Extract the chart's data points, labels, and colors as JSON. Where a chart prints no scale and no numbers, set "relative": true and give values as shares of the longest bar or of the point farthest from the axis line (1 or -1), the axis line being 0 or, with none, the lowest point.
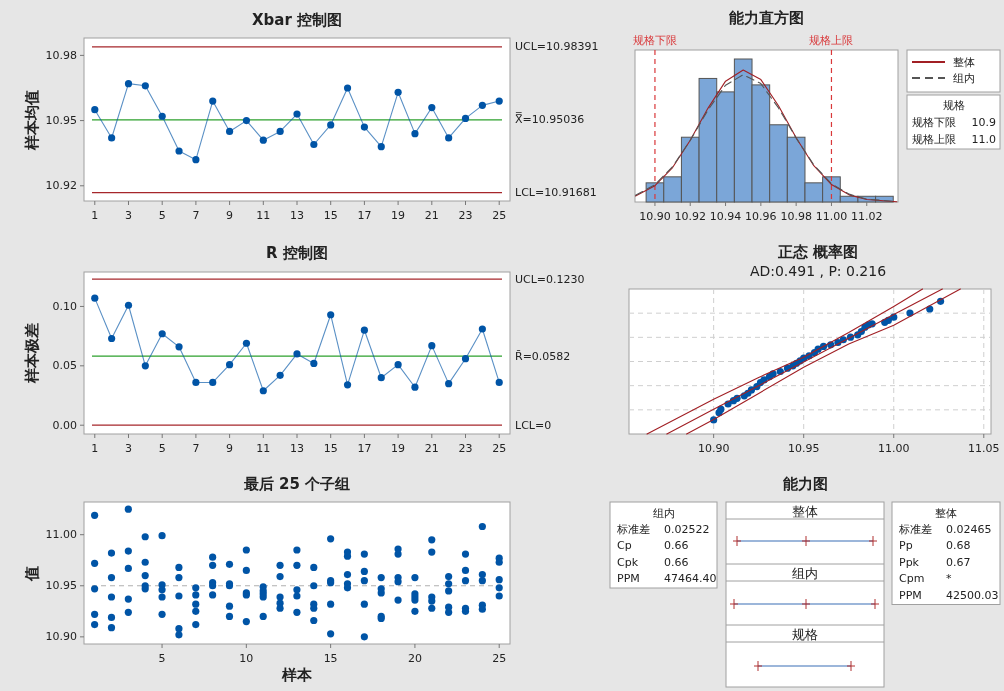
{
  "chart_data": [
    {
      "type": "line",
      "title": "Xbar 控制图",
      "ylabel": "样本均值",
      "x": [
        1,
        2,
        3,
        4,
        5,
        6,
        7,
        8,
        9,
        10,
        11,
        12,
        13,
        14,
        15,
        16,
        17,
        18,
        19,
        20,
        21,
        22,
        23,
        24,
        25
      ],
      "xlim": [
        0.36,
        25.64
      ],
      "xticks": [
        1,
        3,
        5,
        7,
        9,
        11,
        13,
        15,
        17,
        19,
        21,
        23,
        25
      ],
      "ylim": [
        10.913,
        10.988
      ],
      "yticks": [
        10.92,
        10.95,
        10.98
      ],
      "marker": "circle",
      "series": [
        {
          "color": "#0054a6",
          "values": [
            10.955,
            10.942,
            10.967,
            10.966,
            10.952,
            10.936,
            10.932,
            10.959,
            10.945,
            10.95,
            10.941,
            10.945,
            10.953,
            10.939,
            10.948,
            10.965,
            10.947,
            10.938,
            10.963,
            10.944,
            10.956,
            10.942,
            10.951,
            10.957,
            10.959
          ]
        }
      ],
      "ref_lines": [
        {
          "axis": "y",
          "value": 10.98391,
          "label": "UCL=10.98391",
          "color": "#a6262b"
        },
        {
          "axis": "y",
          "value": 10.95036,
          "label": "X̿=10.95036",
          "color": "#2ca02c"
        },
        {
          "axis": "y",
          "value": 10.91681,
          "label": "LCL=10.91681",
          "color": "#a6262b"
        }
      ]
    },
    {
      "type": "histogram",
      "title": "能力直方图",
      "relative": true,
      "bins": [
        10.895,
        10.905,
        10.915,
        10.925,
        10.935,
        10.945,
        10.955,
        10.965,
        10.975,
        10.985,
        10.995,
        11.005,
        11.015,
        11.025,
        11.035
      ],
      "values": [
        0.134,
        0.176,
        0.453,
        0.864,
        0.77,
        1,
        0.819,
        0.54,
        0.453,
        0.134,
        0.176,
        0.04,
        0.04,
        0.04
      ],
      "color": "#7ba6d8",
      "xlim": [
        10.8887,
        11.0377
      ],
      "xticks": [
        {
          "value": 10.9,
          "label": "10.90"
        },
        {
          "value": 10.92,
          "label": "10.92"
        },
        {
          "value": 10.94,
          "label": "10.94"
        },
        {
          "value": 10.96,
          "label": "10.96"
        },
        {
          "value": 10.98,
          "label": "10.98"
        },
        {
          "value": 11.0,
          "label": "11.00"
        },
        {
          "value": 11.02,
          "label": "11.02"
        }
      ],
      "series": [
        {
          "name": "整体",
          "type": "line",
          "color": "#a11f24",
          "line_style": "solid",
          "x": [
            10.889,
            10.9,
            10.91,
            10.92,
            10.93,
            10.94,
            10.95,
            10.96,
            10.97,
            10.98,
            10.99,
            11.0,
            11.01,
            11.02,
            11.037
          ],
          "values": [
            0.042,
            0.114,
            0.241,
            0.432,
            0.655,
            0.845,
            0.923,
            0.856,
            0.673,
            0.449,
            0.254,
            0.122,
            0.05,
            0.017,
            0.002
          ]
        },
        {
          "name": "组内",
          "type": "line",
          "color": "#555555",
          "line_style": "dashed",
          "x": [
            10.889,
            10.9,
            10.91,
            10.92,
            10.93,
            10.94,
            10.95,
            10.96,
            10.97,
            10.98,
            10.99,
            11.0,
            11.01,
            11.02,
            11.037
          ],
          "values": [
            0.047,
            0.121,
            0.247,
            0.431,
            0.642,
            0.817,
            0.89,
            0.828,
            0.658,
            0.447,
            0.259,
            0.128,
            0.055,
            0.02,
            0.003
          ]
        }
      ],
      "ref_lines": [
        {
          "axis": "x",
          "value": 10.9,
          "label": "规格下限",
          "color": "#d9383a",
          "line_style": "dashed"
        },
        {
          "axis": "x",
          "value": 11.0,
          "label": "规格上限",
          "color": "#d9383a",
          "line_style": "dashed"
        }
      ],
      "legend": "right",
      "annotations": [
        "规格",
        "规格下限",
        "10.9",
        "规格上限",
        "11.0"
      ]
    },
    {
      "type": "line",
      "title": "R 控制图",
      "ylabel": "样本极差",
      "x": [
        1,
        2,
        3,
        4,
        5,
        6,
        7,
        8,
        9,
        10,
        11,
        12,
        13,
        14,
        15,
        16,
        17,
        18,
        19,
        20,
        21,
        22,
        23,
        24,
        25
      ],
      "xlim": [
        0.36,
        25.64
      ],
      "xticks": [
        1,
        3,
        5,
        7,
        9,
        11,
        13,
        15,
        17,
        19,
        21,
        23,
        25
      ],
      "ylim": [
        -0.0074,
        0.129
      ],
      "yticks": [
        {
          "value": 0,
          "label": "0.00"
        },
        {
          "value": 0.05,
          "label": "0.05"
        },
        {
          "value": 0.1,
          "label": "0.10"
        }
      ],
      "marker": "circle",
      "series": [
        {
          "color": "#0054a6",
          "values": [
            0.107,
            0.073,
            0.101,
            0.05,
            0.077,
            0.066,
            0.036,
            0.036,
            0.051,
            0.069,
            0.029,
            0.042,
            0.06,
            0.052,
            0.093,
            0.034,
            0.08,
            0.04,
            0.051,
            0.032,
            0.067,
            0.035,
            0.056,
            0.081,
            0.036
          ]
        }
      ],
      "ref_lines": [
        {
          "axis": "y",
          "value": 0.123,
          "label": "UCL=0.1230",
          "color": "#a6262b"
        },
        {
          "axis": "y",
          "value": 0.0582,
          "label": "R̄=0.0582",
          "color": "#2ca02c"
        },
        {
          "axis": "y",
          "value": 0,
          "label": "LCL=0",
          "color": "#a6262b"
        }
      ]
    },
    {
      "type": "scatter",
      "title": "正态 概率图",
      "subtitle": "AD:0.491 , P: 0.216",
      "relative": true,
      "grid": true,
      "xlim": [
        10.853,
        11.054
      ],
      "xticks": [
        {
          "value": 10.9,
          "label": "10.90"
        },
        {
          "value": 10.95,
          "label": "10.95"
        },
        {
          "value": 11.0,
          "label": "11.00"
        },
        {
          "value": 11.05,
          "label": "11.05"
        }
      ],
      "series": [
        {
          "color": "#0054a6",
          "marker": "circle",
          "x": [
            10.9,
            10.903,
            10.904,
            10.908,
            10.911,
            10.913,
            10.917,
            10.919,
            10.921,
            10.924,
            10.926,
            10.928,
            10.931,
            10.933,
            10.937,
            10.941,
            10.944,
            10.946,
            10.948,
            10.95,
            10.953,
            10.956,
            10.958,
            10.961,
            10.965,
            10.969,
            10.972,
            10.976,
            10.98,
            10.982,
            10.984,
            10.986,
            10.988,
            10.995,
            10.997,
            11.0,
            11.009,
            11.02,
            11.026
          ],
          "values": [
            0.097,
            0.147,
            0.171,
            0.207,
            0.23,
            0.246,
            0.263,
            0.281,
            0.304,
            0.327,
            0.355,
            0.373,
            0.396,
            0.415,
            0.431,
            0.454,
            0.47,
            0.488,
            0.505,
            0.523,
            0.539,
            0.562,
            0.585,
            0.604,
            0.615,
            0.631,
            0.65,
            0.668,
            0.684,
            0.707,
            0.737,
            0.753,
            0.76,
            0.77,
            0.783,
            0.806,
            0.834,
            0.862,
            0.915
          ]
        },
        {
          "type": "line",
          "marker": "none",
          "color": "#a11f24",
          "x": [
            10.874,
            10.9,
            10.925,
            10.95,
            10.975,
            11.0,
            11.027
          ],
          "values": [
            0,
            0.17,
            0.333,
            0.497,
            0.66,
            0.824,
            1
          ]
        },
        {
          "type": "line",
          "marker": "none",
          "color": "#a11f24",
          "x": [
            10.863,
            10.9,
            10.925,
            10.95,
            10.975,
            11.0,
            11.016
          ],
          "values": [
            0,
            0.24,
            0.39,
            0.53,
            0.7,
            0.88,
            1
          ]
        },
        {
          "type": "line",
          "marker": "none",
          "color": "#a11f24",
          "x": [
            10.885,
            10.9,
            10.925,
            10.95,
            10.975,
            11.0,
            11.037
          ],
          "values": [
            0,
            0.1,
            0.28,
            0.46,
            0.62,
            0.75,
            1
          ]
        }
      ]
    },
    {
      "type": "scatter",
      "title": "最后 25 个子组",
      "xlabel": "样本",
      "ylabel": "值",
      "marker": "circle",
      "xlim": [
        0.37,
        25.64
      ],
      "xticks": [
        5,
        10,
        15,
        20,
        25
      ],
      "ylim": [
        10.893,
        11.032
      ],
      "yticks": [
        {
          "value": 10.9,
          "label": "10.90"
        },
        {
          "value": 10.95,
          "label": "10.95"
        },
        {
          "value": 11.0,
          "label": "11.00"
        }
      ],
      "ref_lines": [
        {
          "axis": "y",
          "value": 10.95,
          "color": "#b0b0b0",
          "line_style": "dashed"
        }
      ],
      "series": [
        {
          "color": "#0054a6",
          "x": [
            1,
            1,
            1,
            1,
            1,
            2,
            2,
            2,
            2,
            2,
            3,
            3,
            3,
            3,
            3,
            4,
            4,
            4,
            4,
            4,
            5,
            5,
            5,
            5,
            5,
            6,
            6,
            6,
            6,
            6,
            7,
            7,
            7,
            7,
            7,
            8,
            8,
            8,
            8,
            8,
            9,
            9,
            9,
            9,
            9,
            10,
            10,
            10,
            10,
            10,
            11,
            11,
            11,
            11,
            11,
            12,
            12,
            12,
            12,
            12,
            13,
            13,
            13,
            13,
            13,
            14,
            14,
            14,
            14,
            14,
            15,
            15,
            15,
            15,
            15,
            16,
            16,
            16,
            16,
            16,
            17,
            17,
            17,
            17,
            17,
            18,
            18,
            18,
            18,
            18,
            19,
            19,
            19,
            19,
            19,
            20,
            20,
            20,
            20,
            20,
            21,
            21,
            21,
            21,
            21,
            22,
            22,
            22,
            22,
            22,
            23,
            23,
            23,
            23,
            23,
            24,
            24,
            24,
            24,
            24,
            25,
            25,
            25,
            25,
            25
          ],
          "values": [
            11.019,
            10.972,
            10.947,
            10.922,
            10.912,
            10.982,
            10.958,
            10.939,
            10.919,
            10.909,
            11.025,
            10.984,
            10.967,
            10.937,
            10.924,
            10.998,
            10.973,
            10.96,
            10.95,
            10.947,
            10.999,
            10.951,
            10.946,
            10.939,
            10.922,
            10.968,
            10.958,
            10.94,
            10.908,
            10.902,
            10.948,
            10.941,
            10.932,
            10.925,
            10.912,
            10.978,
            10.97,
            10.953,
            10.95,
            10.941,
            10.971,
            10.952,
            10.95,
            10.93,
            10.92,
            10.985,
            10.965,
            10.943,
            10.941,
            10.915,
            10.949,
            10.945,
            10.942,
            10.939,
            10.92,
            10.97,
            10.959,
            10.939,
            10.933,
            10.928,
            10.985,
            10.97,
            10.946,
            10.94,
            10.924,
            10.968,
            10.95,
            10.932,
            10.928,
            10.916,
            10.996,
            10.955,
            10.953,
            10.932,
            10.903,
            10.983,
            10.979,
            10.961,
            10.952,
            10.948,
            10.981,
            10.964,
            10.955,
            10.932,
            10.9,
            10.958,
            10.947,
            10.943,
            10.92,
            10.918,
            10.986,
            10.981,
            10.958,
            10.954,
            10.936,
            10.958,
            10.942,
            10.939,
            10.936,
            10.925,
            10.995,
            10.983,
            10.939,
            10.935,
            10.928,
            10.959,
            10.952,
            10.945,
            10.929,
            10.924,
            10.981,
            10.965,
            10.955,
            10.928,
            10.925,
            11.008,
            10.961,
            10.955,
            10.931,
            10.927,
            10.977,
            10.973,
            10.956,
            10.948,
            10.94
          ]
        }
      ]
    },
    {
      "type": "other",
      "title": "能力图",
      "annotations": [
        "组内",
        "标准差",
        "0.02522",
        "Cp",
        "0.66",
        "Cpk",
        "0.66",
        "PPM",
        "47464.40",
        "整体",
        "组内",
        "规格",
        "整体",
        "标准差",
        "0.02465",
        "Pp",
        "0.68",
        "Ppk",
        "0.67",
        "Cpm",
        "*",
        "PPM",
        "42500.03"
      ]
    }
  ]
}
